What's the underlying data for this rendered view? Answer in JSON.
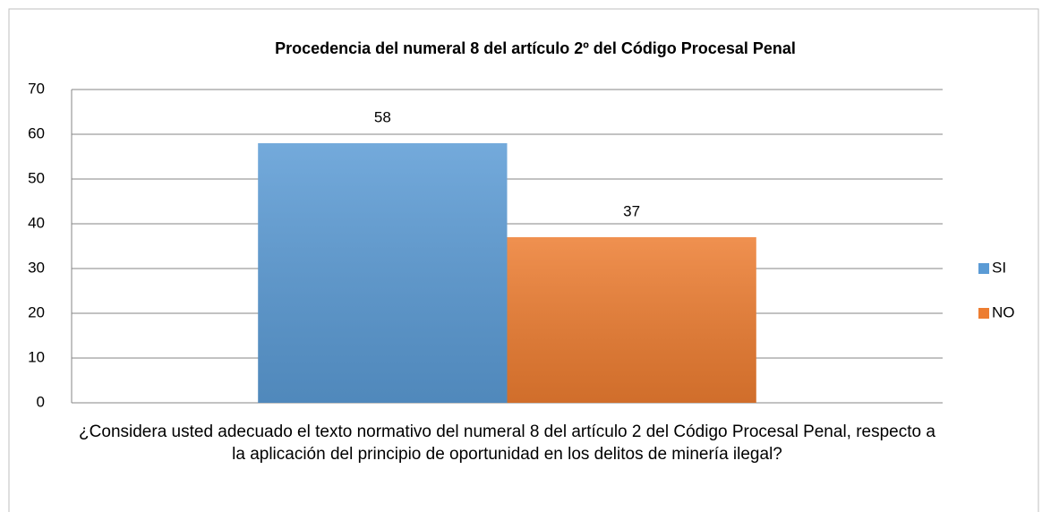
{
  "chart_data": {
    "type": "bar",
    "title": "Procedencia del numeral 8 del artículo 2º del Código Procesal Penal",
    "categories": [
      "¿Considera usted adecuado el texto normativo del numeral 8 del artículo 2 del Código Procesal Penal, respecto a la aplicación del principio de oportunidad en los delitos de minería ilegal?"
    ],
    "series": [
      {
        "name": "SI",
        "color": "#5b9bd5",
        "values": [
          58
        ]
      },
      {
        "name": "NO",
        "color": "#ed7d31",
        "values": [
          37
        ]
      }
    ],
    "ylim": [
      0,
      70
    ],
    "yticks": [
      0,
      10,
      20,
      30,
      40,
      50,
      60,
      70
    ],
    "grid": true,
    "legend": "right"
  }
}
